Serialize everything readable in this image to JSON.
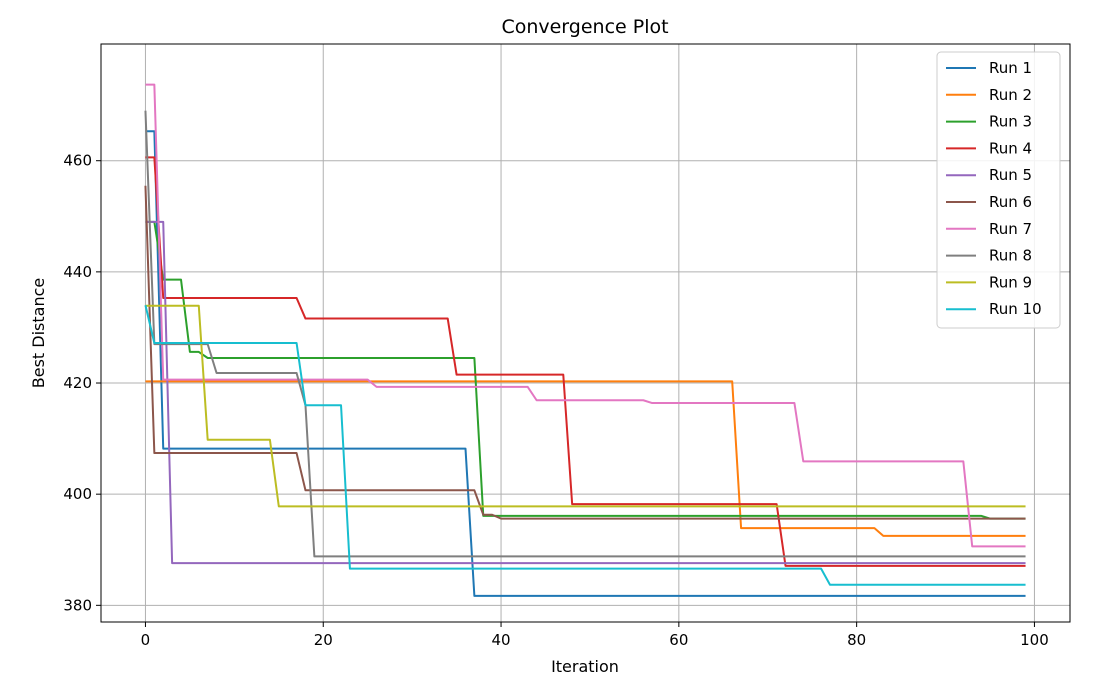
{
  "chart_data": {
    "type": "line",
    "title": "Convergence Plot",
    "xlabel": "Iteration",
    "ylabel": "Best Distance",
    "xlim": [
      -5,
      104
    ],
    "ylim": [
      377,
      481
    ],
    "xticks": [
      0,
      20,
      40,
      60,
      80,
      100
    ],
    "yticks": [
      380,
      400,
      420,
      440,
      460
    ],
    "grid": true,
    "legend_position": "top-right",
    "x_max": 99,
    "series": [
      {
        "name": "Run 1",
        "color": "#1f77b4",
        "steps": [
          [
            0,
            465.3
          ],
          [
            2,
            408.2
          ],
          [
            37,
            381.7
          ]
        ]
      },
      {
        "name": "Run 2",
        "color": "#ff7f0e",
        "steps": [
          [
            0,
            420.3
          ],
          [
            67,
            393.9
          ],
          [
            83,
            392.5
          ]
        ]
      },
      {
        "name": "Run 3",
        "color": "#2ca02c",
        "steps": [
          [
            0,
            449.0
          ],
          [
            2,
            438.6
          ],
          [
            5,
            425.6
          ],
          [
            7,
            424.5
          ],
          [
            38,
            396.1
          ],
          [
            95,
            395.6
          ]
        ]
      },
      {
        "name": "Run 4",
        "color": "#d62728",
        "steps": [
          [
            0,
            460.6
          ],
          [
            2,
            435.3
          ],
          [
            18,
            431.6
          ],
          [
            35,
            421.5
          ],
          [
            48,
            398.2
          ],
          [
            72,
            387.1
          ]
        ]
      },
      {
        "name": "Run 5",
        "color": "#9467bd",
        "steps": [
          [
            0,
            449.0
          ],
          [
            3,
            387.6
          ]
        ]
      },
      {
        "name": "Run 6",
        "color": "#8c564b",
        "steps": [
          [
            0,
            455.5
          ],
          [
            1,
            407.4
          ],
          [
            18,
            400.7
          ],
          [
            38,
            396.3
          ],
          [
            40,
            395.6
          ]
        ]
      },
      {
        "name": "Run 7",
        "color": "#e377c2",
        "steps": [
          [
            0,
            473.7
          ],
          [
            2,
            420.6
          ],
          [
            26,
            419.3
          ],
          [
            44,
            416.9
          ],
          [
            57,
            416.4
          ],
          [
            74,
            405.9
          ],
          [
            93,
            390.6
          ]
        ]
      },
      {
        "name": "Run 8",
        "color": "#7f7f7f",
        "steps": [
          [
            0,
            469.0
          ],
          [
            1,
            427.0
          ],
          [
            8,
            421.8
          ],
          [
            18,
            416.0
          ],
          [
            19,
            388.8
          ]
        ]
      },
      {
        "name": "Run 9",
        "color": "#bcbd22",
        "steps": [
          [
            0,
            433.9
          ],
          [
            7,
            409.8
          ],
          [
            15,
            397.8
          ]
        ]
      },
      {
        "name": "Run 10",
        "color": "#17becf",
        "steps": [
          [
            0,
            434.0
          ],
          [
            1,
            427.2
          ],
          [
            18,
            416.0
          ],
          [
            23,
            386.6
          ],
          [
            77,
            383.7
          ]
        ]
      }
    ]
  }
}
